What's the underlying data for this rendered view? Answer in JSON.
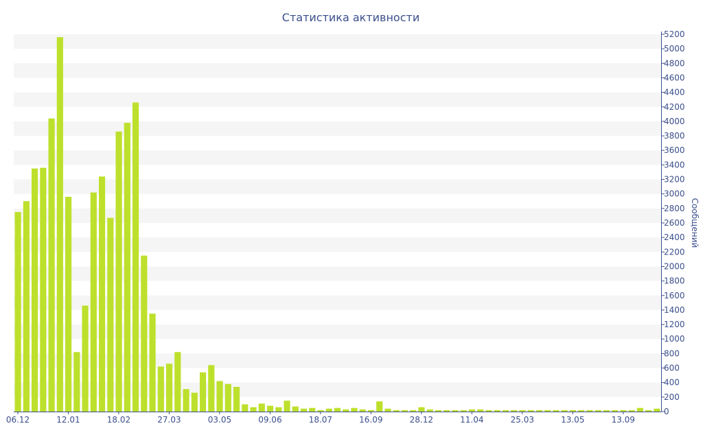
{
  "chart_data": {
    "type": "bar",
    "title": "Статистика активности",
    "ylabel": "Сообщений",
    "xlabel": "",
    "ylim": [
      0,
      5200
    ],
    "yticks": [
      0,
      200,
      400,
      600,
      800,
      1000,
      1200,
      1400,
      1600,
      1800,
      2000,
      2200,
      2400,
      2600,
      2800,
      3000,
      3200,
      3400,
      3600,
      3800,
      4000,
      4200,
      4400,
      4600,
      4800,
      5000,
      5200
    ],
    "x_tick_labels": [
      {
        "label": "06.12",
        "index": 0
      },
      {
        "label": "12.01",
        "index": 6
      },
      {
        "label": "18.02",
        "index": 12
      },
      {
        "label": "27.03",
        "index": 18
      },
      {
        "label": "03.05",
        "index": 24
      },
      {
        "label": "09.06",
        "index": 30
      },
      {
        "label": "18.07",
        "index": 36
      },
      {
        "label": "16.09",
        "index": 42
      },
      {
        "label": "28.12",
        "index": 48
      },
      {
        "label": "11.04",
        "index": 54
      },
      {
        "label": "25.03",
        "index": 60
      },
      {
        "label": "13.05",
        "index": 66
      },
      {
        "label": "13.09",
        "index": 72
      }
    ],
    "values": [
      2750,
      2900,
      3350,
      3360,
      4040,
      5160,
      2960,
      820,
      1460,
      3020,
      3240,
      2670,
      3860,
      3980,
      4260,
      2150,
      1350,
      620,
      660,
      820,
      310,
      260,
      540,
      640,
      420,
      380,
      340,
      100,
      60,
      110,
      80,
      60,
      150,
      70,
      40,
      50,
      20,
      40,
      50,
      30,
      50,
      30,
      20,
      140,
      40,
      20,
      20,
      20,
      60,
      30,
      20,
      20,
      20,
      20,
      30,
      30,
      20,
      20,
      20,
      20,
      20,
      20,
      20,
      20,
      20,
      20,
      20,
      20,
      20,
      20,
      20,
      20,
      20,
      20,
      50,
      20,
      40
    ],
    "grid": true,
    "bar_color": "#bde02c",
    "band_color": "#f5f5f5",
    "axis_color": "#3a4e8c"
  }
}
